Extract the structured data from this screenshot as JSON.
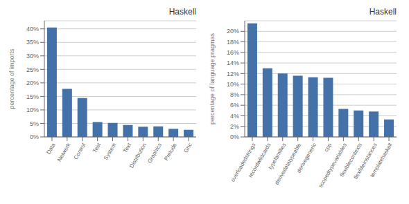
{
  "chart_data": [
    {
      "type": "bar",
      "title": "Haskell",
      "categories": [
        "Data",
        "Network",
        "Control",
        "Test",
        "System",
        "Text",
        "Distribution",
        "Graphics",
        "Prelude",
        "Ghc"
      ],
      "values": [
        40.5,
        17.8,
        14.4,
        5.5,
        5.2,
        4.4,
        3.8,
        3.9,
        3.0,
        2.6
      ],
      "ylabel": "percentage of imports",
      "color": "#4472a8",
      "ylim": [
        0,
        43
      ],
      "yticks": [
        {
          "value": 0,
          "label": "0%"
        },
        {
          "value": 5,
          "label": "5%"
        },
        {
          "value": 10,
          "label": "10%"
        },
        {
          "value": 15,
          "label": "15%"
        },
        {
          "value": 20,
          "label": "20%"
        },
        {
          "value": 25,
          "label": "25%"
        },
        {
          "value": 30,
          "label": "30%"
        },
        {
          "value": 35,
          "label": "35%"
        },
        {
          "value": 40,
          "label": "40%"
        }
      ],
      "grid": true
    },
    {
      "type": "bar",
      "title": "Haskell",
      "categories": [
        "overloadedstrings",
        "recordwildcards",
        "typefamilies",
        "derivedatatypeable",
        "derivegeneric",
        "cpp",
        "scopedtypevariables",
        "flexiblecontexts",
        "flexibleinstances",
        "templatehaskell"
      ],
      "values": [
        21.5,
        13.0,
        12.0,
        11.6,
        11.3,
        11.2,
        5.3,
        5.0,
        4.8,
        3.3
      ],
      "ylabel": "percentage of language pragmas",
      "color": "#4472a8",
      "ylim": [
        0,
        22
      ],
      "yticks": [
        {
          "value": 0,
          "label": "0%"
        },
        {
          "value": 2,
          "label": "2%"
        },
        {
          "value": 4,
          "label": "4%"
        },
        {
          "value": 6,
          "label": "6%"
        },
        {
          "value": 8,
          "label": "8%"
        },
        {
          "value": 10,
          "label": "10%"
        },
        {
          "value": 12,
          "label": "12%"
        },
        {
          "value": 14,
          "label": "14%"
        },
        {
          "value": 16,
          "label": "16%"
        },
        {
          "value": 18,
          "label": "18%"
        },
        {
          "value": 20,
          "label": "20%"
        }
      ],
      "grid": true
    }
  ]
}
